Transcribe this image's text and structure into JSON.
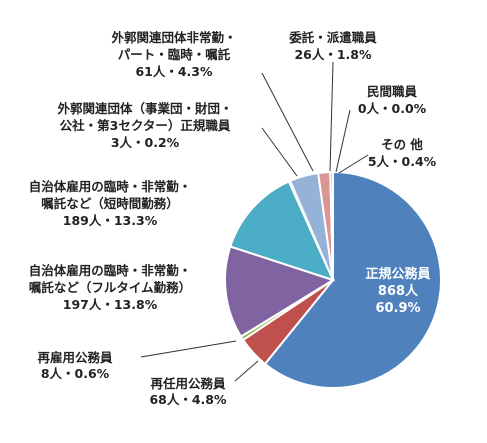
{
  "chart_data": {
    "type": "pie",
    "slices": [
      {
        "name": "正規公務員",
        "count": "868人",
        "percent": "60.9%",
        "value": 60.9,
        "color": "#4F81BD",
        "label_style": "inside"
      },
      {
        "name": "再任用公務員",
        "count": "68人",
        "percent": "4.8%",
        "value": 4.8,
        "color": "#C0504D",
        "label_style": "outside"
      },
      {
        "name": "再雇用公務員",
        "count": "8人",
        "percent": "0.6%",
        "value": 0.6,
        "color": "#9BBB59",
        "label_style": "outside"
      },
      {
        "name": "自治体雇用の臨時・非常勤・嘱託など（フルタイム勤務）",
        "lines": [
          "自治体雇用の臨時・非常勤・",
          "嘱託など（フルタイム勤務）"
        ],
        "count": "197人",
        "percent": "13.8%",
        "value": 13.8,
        "color": "#8064A2",
        "label_style": "outside"
      },
      {
        "name": "自治体雇用の臨時・非常勤・嘱託など（短時間勤務）",
        "lines": [
          "自治体雇用の臨時・非常勤・",
          "嘱託など（短時間勤務）"
        ],
        "count": "189人",
        "percent": "13.3%",
        "value": 13.3,
        "color": "#4BACC6",
        "label_style": "outside"
      },
      {
        "name": "外郭関連団体（事業団・財団・公社・第3セクター）正規職員",
        "lines": [
          "外郭関連団体（事業団・財団・",
          "公社・第3セクター）正規職員"
        ],
        "count": "3人",
        "percent": "0.2%",
        "value": 0.2,
        "color": "#F79646",
        "label_style": "outside"
      },
      {
        "name": "外郭関連団体非常勤・パート・臨時・嘱託",
        "lines": [
          "外郭関連団体非常勤・",
          "パート・臨時・嘱託"
        ],
        "count": "61人",
        "percent": "4.3%",
        "value": 4.3,
        "color": "#95B3D7",
        "label_style": "outside"
      },
      {
        "name": "委託・派遣職員",
        "count": "26人",
        "percent": "1.8%",
        "value": 1.8,
        "color": "#D99694",
        "label_style": "outside"
      },
      {
        "name": "民間職員",
        "count": "0人",
        "percent": "0.0%",
        "value": 0.0,
        "color": "#C3D69B",
        "label_style": "outside"
      },
      {
        "name": "その他",
        "display": "その 他",
        "count": "5人",
        "percent": "0.4%",
        "value": 0.4,
        "color": "#B2A1C7",
        "label_style": "outside"
      }
    ]
  }
}
